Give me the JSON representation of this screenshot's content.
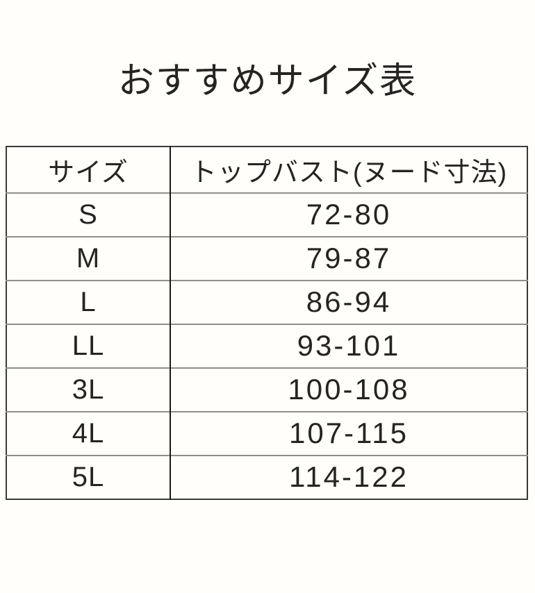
{
  "title": "おすすめサイズ表",
  "chart_data": {
    "type": "table",
    "title": "おすすめサイズ表",
    "columns": [
      "サイズ",
      "トップバスト(ヌード寸法)"
    ],
    "rows": [
      [
        "S",
        "72-80"
      ],
      [
        "M",
        "79-87"
      ],
      [
        "L",
        "86-94"
      ],
      [
        "LL",
        "93-101"
      ],
      [
        "3L",
        "100-108"
      ],
      [
        "4L",
        "107-115"
      ],
      [
        "5L",
        "114-122"
      ]
    ],
    "unit_hint": "cm",
    "layout": {
      "header_row": true,
      "columns_count": 2,
      "data_rows_count": 7
    }
  },
  "colors": {
    "page_bg": "#fffefa",
    "text_color": "#262423",
    "border_dark": "#3b3936",
    "line_gray": "#8f8f8a",
    "divider_black": "#191917"
  }
}
